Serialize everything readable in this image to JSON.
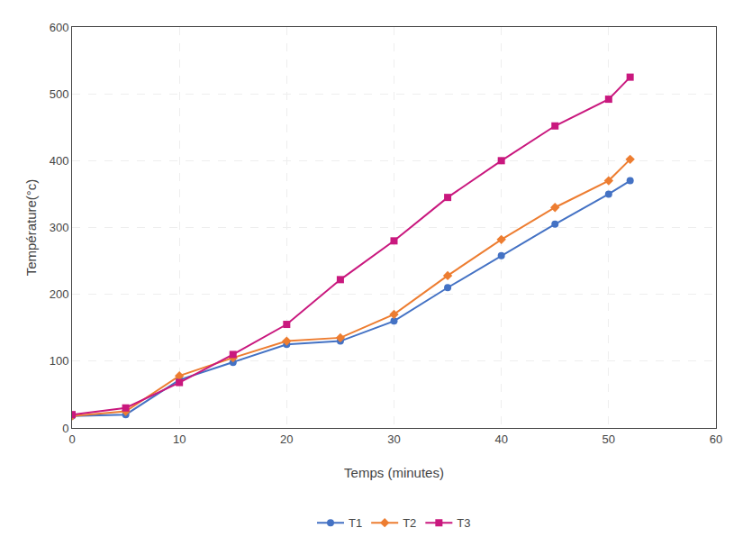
{
  "chart_data": {
    "type": "line",
    "xlabel": "Temps (minutes)",
    "ylabel": "Température(°c)",
    "x": [
      0,
      5,
      10,
      15,
      20,
      25,
      30,
      35,
      40,
      45,
      50,
      52
    ],
    "series": [
      {
        "name": "T1",
        "color": "#4472c4",
        "marker": "circle",
        "values": [
          18,
          20,
          72,
          98,
          125,
          130,
          160,
          210,
          258,
          305,
          350,
          370
        ]
      },
      {
        "name": "T2",
        "color": "#ed7d31",
        "marker": "diamond",
        "values": [
          18,
          25,
          78,
          105,
          130,
          135,
          170,
          228,
          282,
          330,
          370,
          402
        ]
      },
      {
        "name": "T3",
        "color": "#c9187e",
        "marker": "square",
        "values": [
          20,
          30,
          68,
          110,
          155,
          222,
          280,
          345,
          400,
          452,
          492,
          525
        ]
      }
    ],
    "xlim": [
      0,
      60
    ],
    "ylim": [
      0,
      600
    ],
    "xticks": [
      0,
      10,
      20,
      30,
      40,
      50,
      60
    ],
    "yticks": [
      0,
      100,
      200,
      300,
      400,
      500,
      600
    ],
    "grid": true,
    "legend": "bottom"
  }
}
